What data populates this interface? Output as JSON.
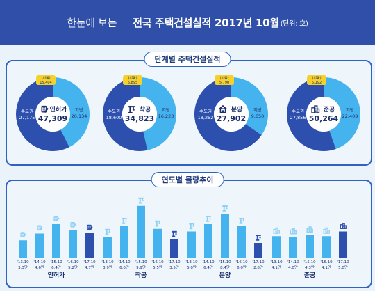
{
  "header": {
    "left_text": "한눈에 보는",
    "main_text": "전국 주택건설실적 2017년 10월",
    "unit_text": "(단위: 호)"
  },
  "chart_data": [
    {
      "type": "pie",
      "style": "donut",
      "title": "단계별 주택건설실적",
      "charts": [
        {
          "label": "인허가",
          "total": "47,309",
          "icon": "document-pen-icon",
          "slices": [
            {
              "name": "지방",
              "value": 20134,
              "label": "20,134"
            },
            {
              "name": "수도권",
              "value": 27175,
              "label": "27,175"
            }
          ],
          "seoul": {
            "name": "(서울)",
            "value": 15404,
            "label": "15,404"
          }
        },
        {
          "label": "착공",
          "total": "34,823",
          "icon": "crane-icon",
          "slices": [
            {
              "name": "지방",
              "value": 16223,
              "label": "16,223"
            },
            {
              "name": "수도권",
              "value": 18600,
              "label": "18,600"
            }
          ],
          "seoul": {
            "name": "(서울)",
            "value": 5895,
            "label": "5,895"
          }
        },
        {
          "label": "분양",
          "total": "27,902",
          "icon": "house-icon",
          "slices": [
            {
              "name": "지방",
              "value": 9650,
              "label": "9,650"
            },
            {
              "name": "수도권",
              "value": 18252,
              "label": "18,252"
            }
          ],
          "seoul": {
            "name": "(서울)",
            "value": 5790,
            "label": "5,790"
          }
        },
        {
          "label": "준공",
          "total": "50,264",
          "icon": "buildings-icon",
          "slices": [
            {
              "name": "지방",
              "value": 22408,
              "label": "22,408"
            },
            {
              "name": "수도권",
              "value": 27856,
              "label": "27,856"
            }
          ],
          "seoul": {
            "name": "(서울)",
            "value": 5192,
            "label": "5,192"
          }
        }
      ],
      "colors": {
        "local": "#45b3ee",
        "metro": "#2d4fae",
        "seoul": "#f6d12a",
        "label": "#1d2f6b"
      }
    },
    {
      "type": "bar",
      "title": "연도별 물량추이",
      "value_unit": "만호",
      "groups": [
        {
          "name": "인허가",
          "icon": "document-pen-icon",
          "categories": [
            "'13.10",
            "'14.10",
            "'15.10",
            "'16.10",
            "'17.10"
          ],
          "values": [
            3.3,
            4.6,
            6.4,
            5.2,
            4.7
          ],
          "labels": [
            "3.3만",
            "4.6만",
            "6.4만",
            "5.2만",
            "4.7만"
          ]
        },
        {
          "name": "착공",
          "icon": "crane-icon",
          "categories": [
            "'13.10",
            "'14.10",
            "'15.10",
            "'16.10",
            "'17.10"
          ],
          "values": [
            3.9,
            6.0,
            9.9,
            5.5,
            3.5
          ],
          "labels": [
            "3.9만",
            "6.0만",
            "9.9만",
            "5.5만",
            "3.5만"
          ]
        },
        {
          "name": "분양",
          "icon": "crane-icon",
          "categories": [
            "'13.10",
            "'14.10",
            "'15.10",
            "'16.10",
            "'17.10"
          ],
          "values": [
            5.0,
            6.4,
            8.4,
            6.0,
            2.8
          ],
          "labels": [
            "5.0만",
            "6.4만",
            "8.4만",
            "6.0만",
            "2.8만"
          ]
        },
        {
          "name": "준공",
          "icon": "buildings-icon",
          "categories": [
            "'13.10",
            "'14.10",
            "'15.10",
            "'16.10",
            "'17.10"
          ],
          "values": [
            4.1,
            4.0,
            4.3,
            4.1,
            5.0
          ],
          "labels": [
            "4.1만",
            "4.0만",
            "4.3만",
            "4.1만",
            "5.0만"
          ]
        }
      ],
      "colors": {
        "bar": "#45b3ee",
        "bar_current": "#2d4fae",
        "icon_light": "#8fd0f5",
        "icon_dark": "#2d4fae",
        "text": "#1d2f6b"
      }
    }
  ]
}
